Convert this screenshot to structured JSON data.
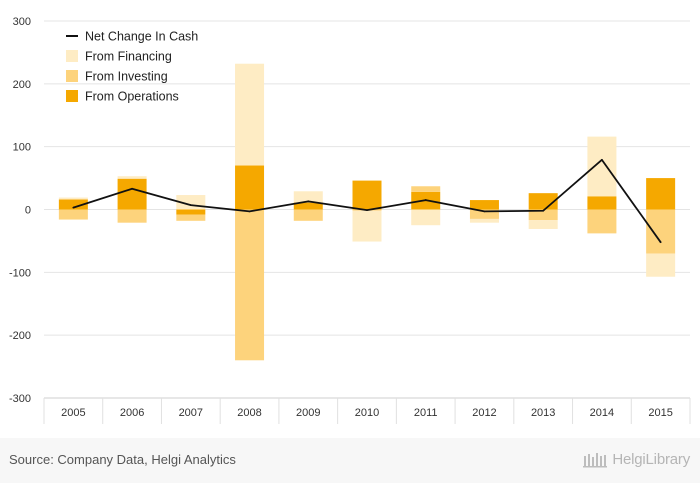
{
  "chart_data": {
    "type": "bar",
    "stacked": true,
    "categories": [
      "2005",
      "2006",
      "2007",
      "2008",
      "2009",
      "2010",
      "2011",
      "2012",
      "2013",
      "2014",
      "2015"
    ],
    "series": [
      {
        "name": "From Operations",
        "kind": "bar",
        "color": "#f5a800",
        "values": [
          16,
          49,
          -8,
          70,
          11,
          46,
          28,
          15,
          26,
          21,
          50
        ]
      },
      {
        "name": "From Investing",
        "kind": "bar",
        "color": "#fdd37c",
        "values": [
          -16,
          -21,
          -10,
          -240,
          -18,
          -2,
          9,
          -15,
          -17,
          -38,
          -70
        ]
      },
      {
        "name": "From Financing",
        "kind": "bar",
        "color": "#feecc4",
        "values": [
          3,
          4,
          23,
          162,
          18,
          -49,
          -25,
          -6,
          -14,
          95,
          -37
        ]
      },
      {
        "name": "Net Change In Cash",
        "kind": "line",
        "color": "#111111",
        "values": [
          3,
          33,
          7,
          -3,
          13,
          -1,
          15,
          -3,
          -2,
          79,
          -52
        ]
      }
    ],
    "ylim": [
      -300,
      300
    ],
    "yticks": [
      300,
      200,
      100,
      0,
      -100,
      -200,
      -300
    ],
    "xlabel": "",
    "ylabel": "",
    "grid": true,
    "legend": {
      "position": "top-left",
      "entries": [
        "Net Change In Cash",
        "From Financing",
        "From Investing",
        "From Operations"
      ]
    }
  },
  "footer": {
    "source": "Source: Company Data, Helgi Analytics",
    "brand": "HelgiLibrary"
  }
}
